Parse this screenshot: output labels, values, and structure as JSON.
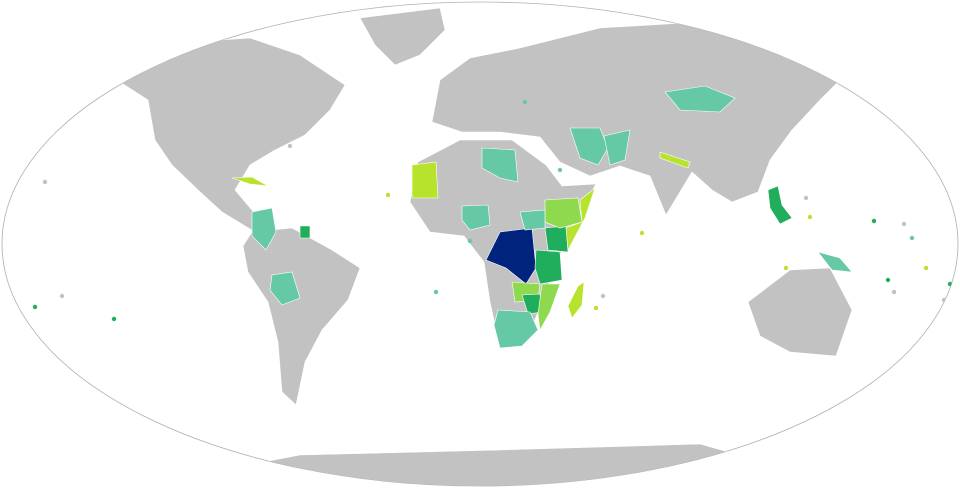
{
  "map": {
    "projection": "robinson",
    "colors": {
      "no_data": "#c2c2c2",
      "ocean": "#ffffff",
      "outline": "#b0b0b0",
      "level_1": "#66c9a6",
      "level_2": "#b7e32c",
      "level_3": "#8fd94e",
      "level_4": "#20ad5c",
      "level_5": "#00247d"
    },
    "highlighted_regions": [
      {
        "region": "dr-congo",
        "level": "level_5"
      },
      {
        "region": "tanzania",
        "level": "level_4"
      },
      {
        "region": "kenya",
        "level": "level_4"
      },
      {
        "region": "zimbabwe",
        "level": "level_4"
      },
      {
        "region": "philippines",
        "level": "level_4"
      },
      {
        "region": "suriname",
        "level": "level_4"
      },
      {
        "region": "ethiopia",
        "level": "level_3"
      },
      {
        "region": "zambia",
        "level": "level_3"
      },
      {
        "region": "mozambique",
        "level": "level_3"
      },
      {
        "region": "somalia",
        "level": "level_2"
      },
      {
        "region": "mauritania",
        "level": "level_2"
      },
      {
        "region": "madagascar",
        "level": "level_2"
      },
      {
        "region": "cuba",
        "level": "level_2"
      },
      {
        "region": "nepal",
        "level": "level_2"
      },
      {
        "region": "libya",
        "level": "level_1"
      },
      {
        "region": "nigeria",
        "level": "level_1"
      },
      {
        "region": "south-africa",
        "level": "level_1"
      },
      {
        "region": "colombia",
        "level": "level_1"
      },
      {
        "region": "bolivia",
        "level": "level_1"
      },
      {
        "region": "iran",
        "level": "level_1"
      },
      {
        "region": "pakistan",
        "level": "level_1"
      },
      {
        "region": "mongolia",
        "level": "level_1"
      },
      {
        "region": "papua-new-guinea",
        "level": "level_1"
      },
      {
        "region": "south-sudan",
        "level": "level_1"
      }
    ]
  }
}
